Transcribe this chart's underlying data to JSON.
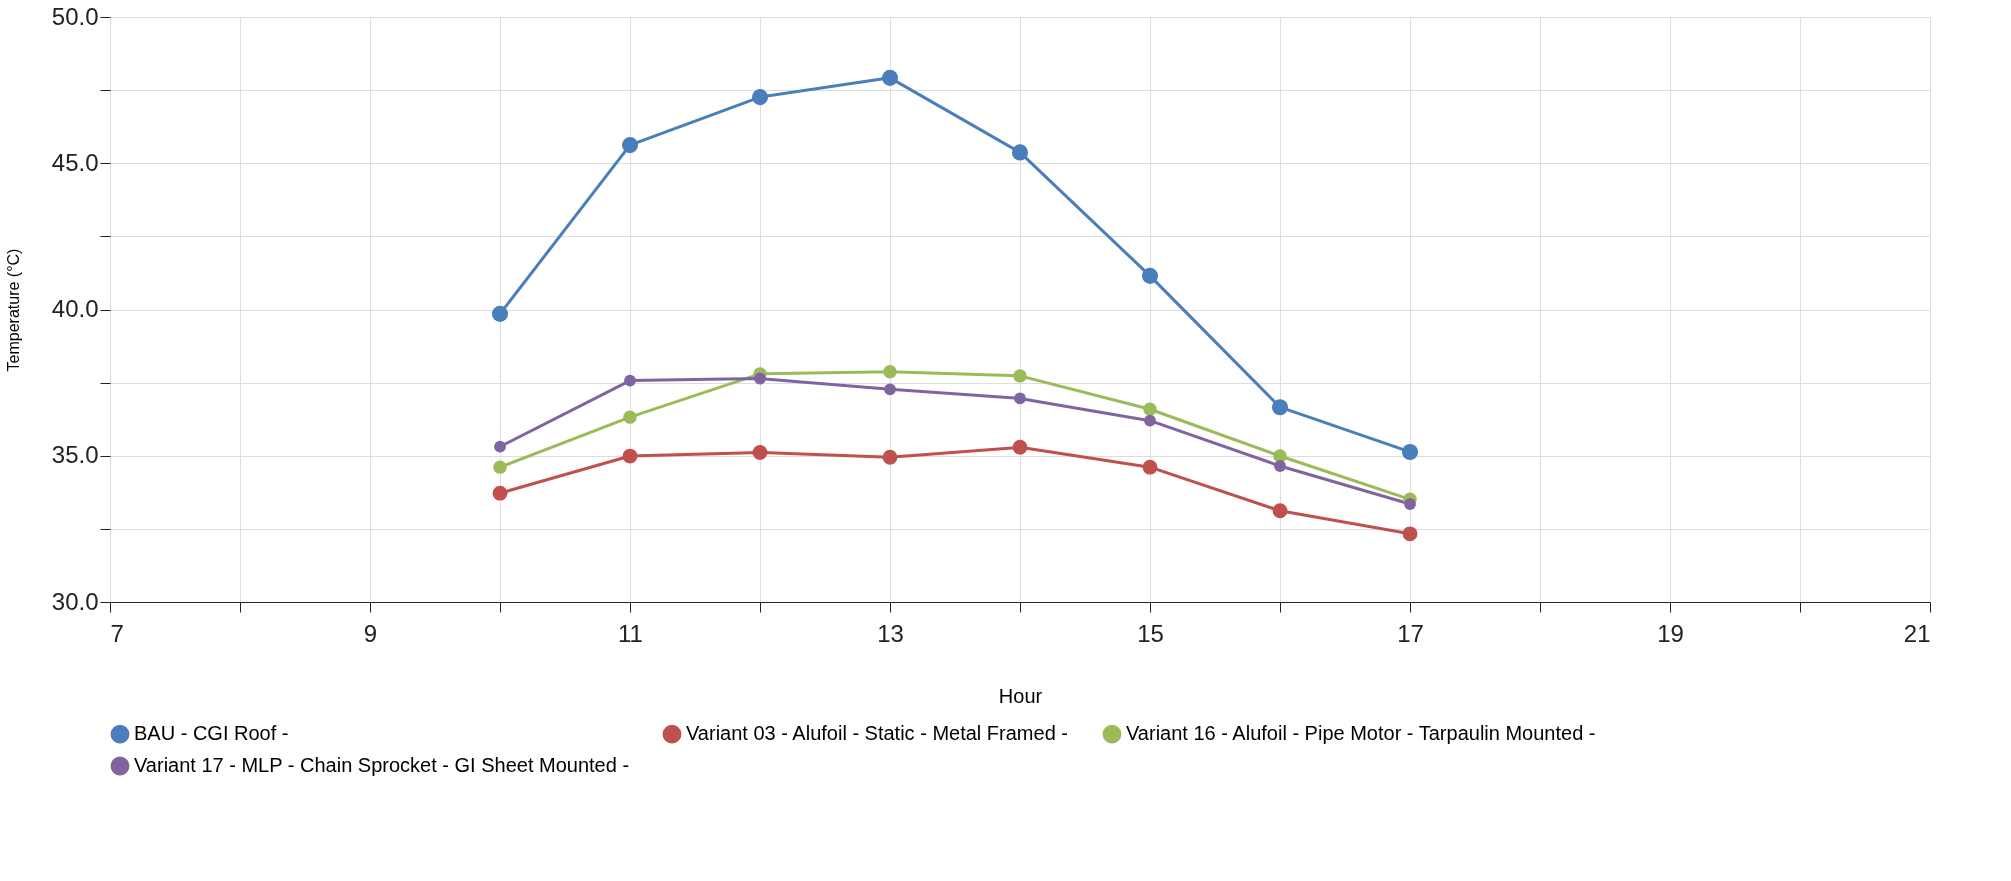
{
  "chart_data": {
    "type": "line",
    "xlabel": "Hour",
    "ylabel": "Temperature (°C)",
    "x": [
      10,
      11,
      12,
      13,
      14,
      15,
      16,
      17
    ],
    "series": [
      {
        "name": "BAU - CGI Roof -",
        "color": "#4a7ebb",
        "values": [
          39.85,
          45.62,
          47.26,
          47.92,
          45.37,
          41.15,
          36.66,
          35.13
        ]
      },
      {
        "name": "Variant 03 - Alufoil - Static - Metal Framed -",
        "color": "#c0504d",
        "values": [
          33.72,
          34.99,
          35.11,
          34.95,
          35.29,
          34.61,
          33.12,
          32.33
        ]
      },
      {
        "name": "Variant 16 - Alufoil - Pipe Motor - Tarpaulin Mounted -",
        "color": "#9bbb59",
        "values": [
          34.61,
          36.32,
          37.8,
          37.87,
          37.73,
          36.59,
          34.99,
          33.51
        ]
      },
      {
        "name": "Variant 17 - MLP - Chain Sprocket - GI Sheet Mounted -",
        "color": "#8064a2",
        "values": [
          35.31,
          37.57,
          37.64,
          37.27,
          36.96,
          36.2,
          34.65,
          33.35
        ]
      }
    ],
    "xlim": [
      7,
      21
    ],
    "xticks": [
      7,
      {
        "value": 8,
        "label": null
      },
      9,
      {
        "value": 10,
        "label": null
      },
      11,
      {
        "value": 12,
        "label": null
      },
      13,
      {
        "value": 14,
        "label": null
      },
      15,
      {
        "value": 16,
        "label": null
      },
      17,
      {
        "value": 18,
        "label": null
      },
      19,
      {
        "value": 20,
        "label": null
      },
      21
    ],
    "ylim": [
      30,
      50
    ],
    "yticks": [
      {
        "value": 30,
        "label": "30.0"
      },
      {
        "value": 32.5,
        "label": null
      },
      {
        "value": 35,
        "label": "35.0"
      },
      {
        "value": 37.5,
        "label": null
      },
      {
        "value": 40,
        "label": "40.0"
      },
      {
        "value": 42.5,
        "label": null
      },
      {
        "value": 45,
        "label": "45.0"
      },
      {
        "value": 47.5,
        "label": null
      },
      {
        "value": 50,
        "label": "50.0"
      }
    ],
    "grid": true,
    "legend": "bottom",
    "marker": "circle",
    "line_style": "solid"
  }
}
